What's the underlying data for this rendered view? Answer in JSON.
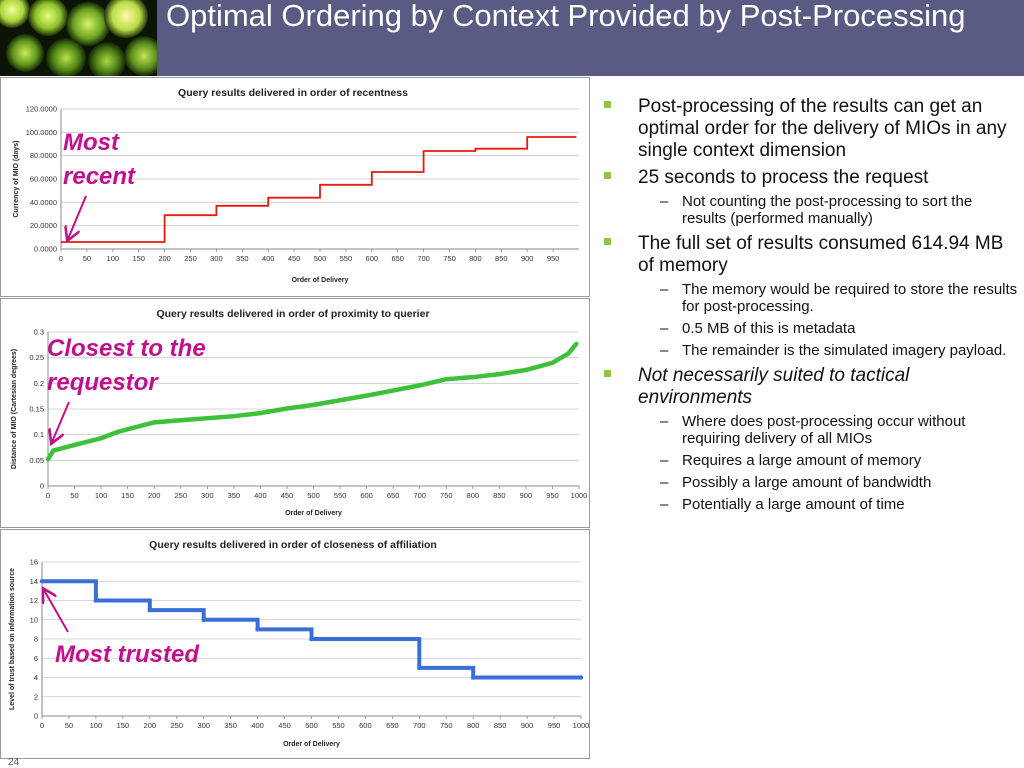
{
  "slide": {
    "title": "Optimal Ordering by Context Provided by Post-Processing",
    "page_number": "24"
  },
  "annotations": {
    "most_recent": [
      "Most",
      "recent"
    ],
    "closest": [
      "Closest to the",
      "requestor"
    ],
    "most_trusted": "Most trusted"
  },
  "bullets": [
    {
      "text": "Post-processing of the results can get an optimal order for the delivery of MIOs in any single context dimension",
      "italic": false,
      "sub": []
    },
    {
      "text": "25 seconds to process the request",
      "italic": false,
      "sub": [
        "Not counting the post-processing to sort the results (performed manually)"
      ]
    },
    {
      "text": "The full set of results consumed 614.94 MB of memory",
      "italic": false,
      "sub": [
        "The memory would be required to store the results for post-processing.",
        "0.5 MB of this is metadata",
        "The remainder is the simulated imagery payload."
      ]
    },
    {
      "text": "Not necessarily suited to tactical environments",
      "italic": true,
      "sub": [
        "Where does post-processing occur without requiring delivery of all MIOs",
        "Requires a large amount of memory",
        "Possibly a large amount of bandwidth",
        "Potentially a large amount of time"
      ]
    }
  ],
  "colors": {
    "header": "#5a5b82",
    "bullet": "#8dc63f",
    "annotation": "#c0108c"
  },
  "chart_data": [
    {
      "type": "line",
      "title": "Query results delivered in order of recentness",
      "xlabel": "Order of Delivery",
      "ylabel": "Currency of MIO (days)",
      "xlim": [
        0,
        1000
      ],
      "ylim": [
        0,
        120
      ],
      "xticks": [
        "0",
        "50",
        "100",
        "150",
        "200",
        "250",
        "300",
        "350",
        "400",
        "450",
        "500",
        "550",
        "600",
        "650",
        "700",
        "750",
        "800",
        "850",
        "900",
        "950"
      ],
      "yticks": [
        "0.0000",
        "20.0000",
        "40.0000",
        "60.0000",
        "80.0000",
        "100.0000",
        "120.0000"
      ],
      "step": true,
      "grid": "horizontal",
      "color": "#e8180f",
      "x": [
        0,
        100,
        200,
        300,
        400,
        500,
        600,
        700,
        800,
        900,
        995
      ],
      "y": [
        6,
        6,
        29,
        37,
        44,
        55,
        66,
        84,
        86,
        96,
        96
      ]
    },
    {
      "type": "line",
      "title": "Query results delivered in order of proximity to querier",
      "xlabel": "Order of Delivery",
      "ylabel": "Distance of MIO (Cartesian degrees)",
      "xlim": [
        0,
        1000
      ],
      "ylim": [
        0,
        0.3
      ],
      "xticks": [
        "0",
        "50",
        "100",
        "150",
        "200",
        "250",
        "300",
        "350",
        "400",
        "450",
        "500",
        "550",
        "600",
        "650",
        "700",
        "750",
        "800",
        "850",
        "900",
        "950",
        "1000"
      ],
      "yticks": [
        "0",
        "0.05",
        "0.1",
        "0.15",
        "0.2",
        "0.25",
        "0.3"
      ],
      "step": false,
      "grid": "horizontal",
      "color": "#3ec03a",
      "x": [
        0,
        10,
        50,
        100,
        130,
        200,
        250,
        350,
        400,
        450,
        500,
        600,
        700,
        750,
        800,
        850,
        900,
        950,
        980,
        995
      ],
      "y": [
        0.052,
        0.069,
        0.08,
        0.093,
        0.105,
        0.124,
        0.128,
        0.136,
        0.142,
        0.151,
        0.158,
        0.176,
        0.196,
        0.208,
        0.212,
        0.218,
        0.226,
        0.24,
        0.258,
        0.277
      ]
    },
    {
      "type": "line",
      "title": "Query results delivered in order of closeness of affiliation",
      "xlabel": "Order of Delivery",
      "ylabel": "Level of trust based on information source",
      "xlim": [
        0,
        1000
      ],
      "ylim": [
        0,
        16
      ],
      "xticks": [
        "0",
        "50",
        "100",
        "150",
        "200",
        "250",
        "300",
        "350",
        "400",
        "450",
        "500",
        "550",
        "600",
        "650",
        "700",
        "750",
        "800",
        "850",
        "900",
        "950",
        "1000"
      ],
      "yticks": [
        "0",
        "2",
        "4",
        "6",
        "8",
        "10",
        "12",
        "14",
        "16"
      ],
      "step": true,
      "grid": "horizontal",
      "color": "#3a6fd8",
      "x": [
        0,
        100,
        200,
        300,
        400,
        500,
        700,
        800,
        1000
      ],
      "y": [
        14,
        12,
        11,
        10,
        9,
        8,
        5,
        4,
        4
      ]
    }
  ]
}
